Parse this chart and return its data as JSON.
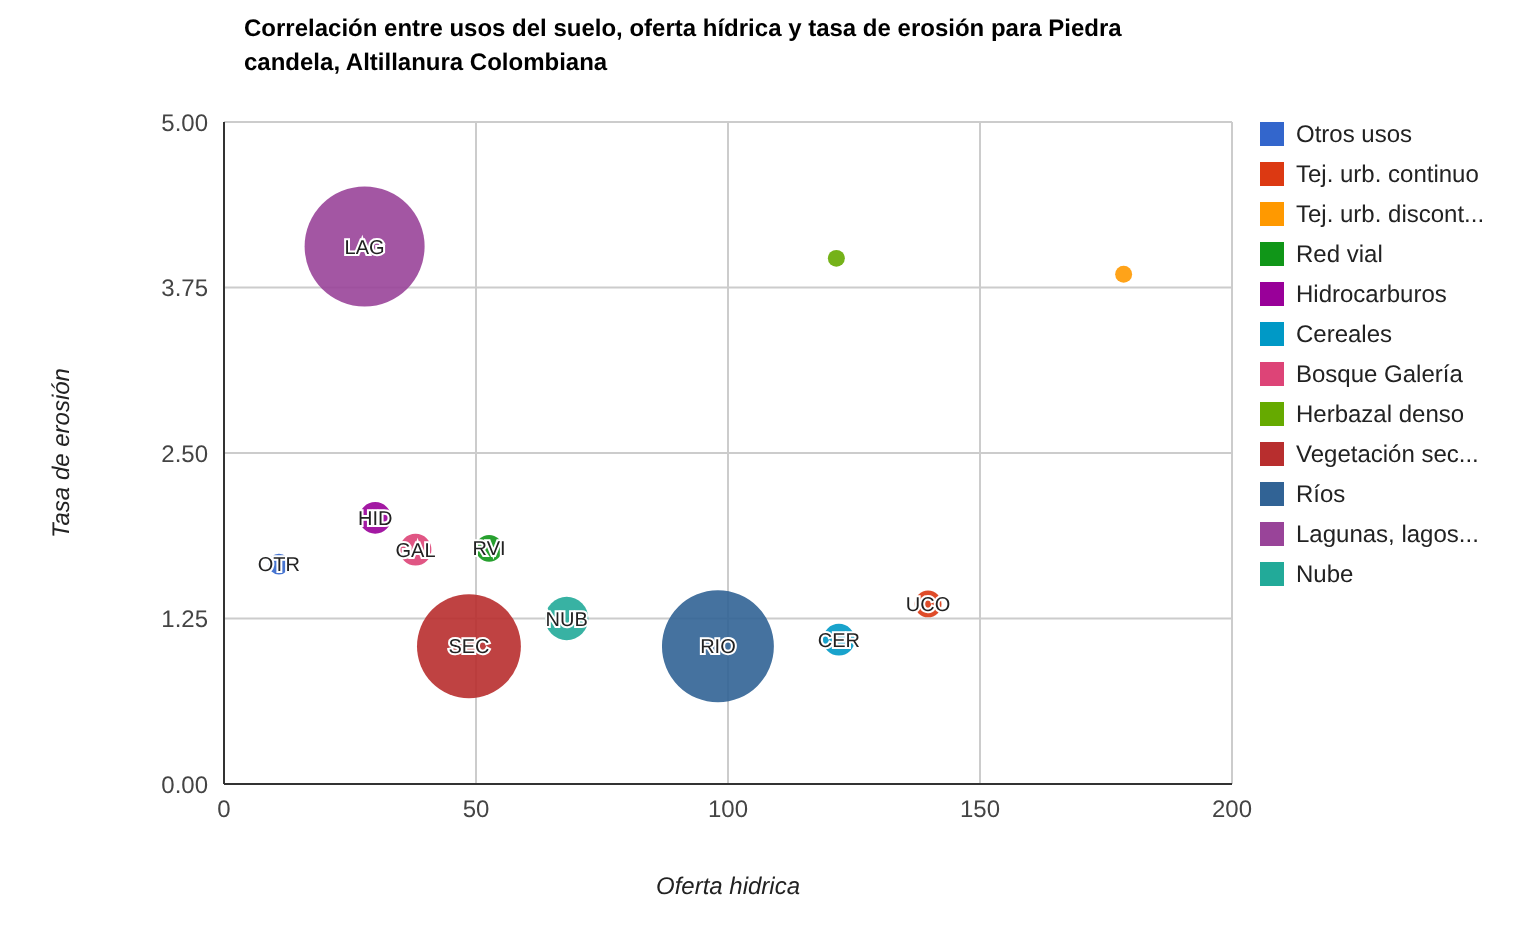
{
  "chart_data": {
    "type": "bubble",
    "title": "Correlación entre usos del suelo, oferta hídrica y tasa de erosión para Piedra candela, Altillanura Colombiana",
    "xlabel": "Oferta hidrica",
    "ylabel": "Tasa de erosión",
    "xlim": [
      0,
      200
    ],
    "xticks": [
      0,
      50,
      100,
      150,
      200
    ],
    "ylim": [
      0,
      5
    ],
    "yticks": [
      {
        "value": 0,
        "label": "0.00"
      },
      {
        "value": 1.25,
        "label": "1.25"
      },
      {
        "value": 2.5,
        "label": "2.50"
      },
      {
        "value": 3.75,
        "label": "3.75"
      },
      {
        "value": 5,
        "label": "5.00"
      }
    ],
    "grid": true,
    "legend": "right",
    "series": [
      {
        "name": "Otros usos",
        "color": "#3366cc",
        "x": [
          10.9
        ],
        "values": [
          1.66
        ],
        "sizes": [
          0.03
        ]
      },
      {
        "name": "Tej. urb. continuo",
        "color": "#dc3912",
        "x": [
          139.7
        ],
        "values": [
          1.36
        ],
        "sizes": [
          0.05
        ]
      },
      {
        "name": "Tej. urb. discont...",
        "color": "#ff9900",
        "x": [
          178.5
        ],
        "values": [
          3.85
        ],
        "sizes": [
          0.02
        ]
      },
      {
        "name": "Red vial",
        "color": "#109618",
        "x": [
          52.6
        ],
        "values": [
          1.78
        ],
        "sizes": [
          0.05
        ]
      },
      {
        "name": "Hidrocarburos",
        "color": "#990099",
        "x": [
          30
        ],
        "values": [
          2.01
        ],
        "sizes": [
          0.07
        ]
      },
      {
        "name": "Cereales",
        "color": "#0099c6",
        "x": [
          122
        ],
        "values": [
          1.09
        ],
        "sizes": [
          0.07
        ]
      },
      {
        "name": "Bosque Galería",
        "color": "#dd4477",
        "x": [
          38
        ],
        "values": [
          1.77
        ],
        "sizes": [
          0.07
        ]
      },
      {
        "name": "Herbazal denso",
        "color": "#66aa00",
        "x": [
          121.5
        ],
        "values": [
          3.97
        ],
        "sizes": [
          0.02
        ]
      },
      {
        "name": "Vegetación sec...",
        "color": "#b82e2e",
        "x": [
          48.6
        ],
        "values": [
          1.04
        ],
        "sizes": [
          0.75
        ]
      },
      {
        "name": "Ríos",
        "color": "#316395",
        "x": [
          98
        ],
        "values": [
          1.04
        ],
        "sizes": [
          0.87
        ]
      },
      {
        "name": "Lagunas, lagos...",
        "color": "#994499",
        "x": [
          27.9
        ],
        "values": [
          4.06
        ],
        "sizes": [
          1
        ]
      },
      {
        "name": "Nube",
        "color": "#22aa99",
        "x": [
          68
        ],
        "values": [
          1.25
        ],
        "sizes": [
          0.13
        ]
      }
    ],
    "annotations": [
      {
        "text": "OTR",
        "x": 10.9,
        "y": 1.66
      },
      {
        "text": "UCO",
        "x": 139.7,
        "y": 1.36
      },
      {
        "text": "RVI",
        "x": 52.6,
        "y": 1.78
      },
      {
        "text": "HID",
        "x": 30,
        "y": 2.01
      },
      {
        "text": "CER",
        "x": 122,
        "y": 1.09
      },
      {
        "text": "GAL",
        "x": 38,
        "y": 1.77
      },
      {
        "text": "SEC",
        "x": 48.6,
        "y": 1.04
      },
      {
        "text": "RIO",
        "x": 98,
        "y": 1.04
      },
      {
        "text": "LAG",
        "x": 27.9,
        "y": 4.06
      },
      {
        "text": "NUB",
        "x": 68,
        "y": 1.25
      }
    ]
  }
}
